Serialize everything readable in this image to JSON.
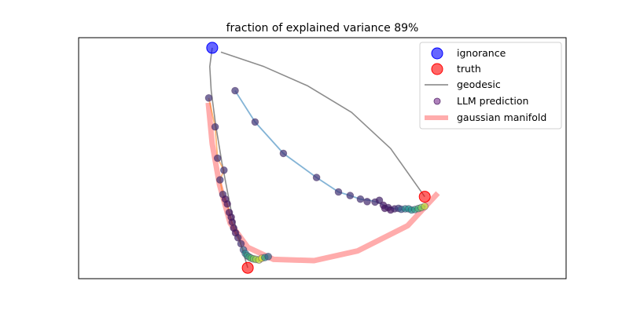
{
  "chart_data": {
    "type": "scatter",
    "title": "fraction of explained variance 89%",
    "xlabel": "",
    "ylabel": "",
    "axes_ticks": false,
    "grid": false,
    "legend_position": "upper right",
    "xlim": [
      0,
      1
    ],
    "ylim": [
      0,
      1
    ],
    "legend": [
      {
        "label": "ignorance",
        "marker": "circle",
        "color": "#0000ff"
      },
      {
        "label": "truth",
        "marker": "circle",
        "color": "#ff0000"
      },
      {
        "label": "geodesic",
        "marker": "line",
        "color": "#808080"
      },
      {
        "label": "LLM prediction",
        "marker": "circle",
        "color": "#8b4c9e"
      },
      {
        "label": "gaussian manifold",
        "marker": "thick-line",
        "color": "#ff9090"
      }
    ],
    "ignorance": [
      0.274,
      0.958
    ],
    "truth": [
      [
        0.347,
        0.045
      ],
      [
        0.71,
        0.34
      ]
    ],
    "geodesics": [
      [
        [
          0.274,
          0.958
        ],
        [
          0.269,
          0.88
        ],
        [
          0.272,
          0.78
        ],
        [
          0.281,
          0.64
        ],
        [
          0.294,
          0.48
        ],
        [
          0.313,
          0.28
        ],
        [
          0.347,
          0.045
        ]
      ],
      [
        [
          0.292,
          0.94
        ],
        [
          0.38,
          0.88
        ],
        [
          0.47,
          0.8
        ],
        [
          0.56,
          0.69
        ],
        [
          0.64,
          0.54
        ],
        [
          0.71,
          0.34
        ]
      ]
    ],
    "gaussian_manifold": [
      [
        0.266,
        0.73
      ],
      [
        0.274,
        0.56
      ],
      [
        0.289,
        0.39
      ],
      [
        0.311,
        0.23
      ],
      [
        0.347,
        0.13
      ],
      [
        0.4,
        0.08
      ],
      [
        0.483,
        0.075
      ],
      [
        0.572,
        0.115
      ],
      [
        0.675,
        0.22
      ],
      [
        0.737,
        0.355
      ]
    ],
    "trajectory_1": [
      [
        0.321,
        0.78
      ],
      [
        0.362,
        0.65
      ],
      [
        0.42,
        0.52
      ],
      [
        0.488,
        0.42
      ],
      [
        0.533,
        0.36
      ],
      [
        0.557,
        0.345
      ],
      [
        0.578,
        0.33
      ],
      [
        0.598,
        0.325
      ],
      [
        0.617,
        0.315
      ],
      [
        0.63,
        0.3
      ],
      [
        0.65,
        0.29
      ],
      [
        0.668,
        0.285
      ],
      [
        0.685,
        0.288
      ],
      [
        0.7,
        0.295
      ],
      [
        0.712,
        0.3
      ]
    ],
    "trajectory_2": [
      [
        0.267,
        0.75
      ],
      [
        0.28,
        0.63
      ],
      [
        0.285,
        0.5
      ],
      [
        0.298,
        0.45
      ],
      [
        0.29,
        0.41
      ],
      [
        0.296,
        0.35
      ],
      [
        0.305,
        0.31
      ],
      [
        0.31,
        0.27
      ],
      [
        0.315,
        0.23
      ],
      [
        0.322,
        0.19
      ],
      [
        0.33,
        0.155
      ],
      [
        0.338,
        0.12
      ],
      [
        0.346,
        0.095
      ],
      [
        0.353,
        0.085
      ],
      [
        0.36,
        0.08
      ],
      [
        0.368,
        0.078
      ],
      [
        0.376,
        0.08
      ],
      [
        0.385,
        0.09
      ]
    ],
    "llm_predictions": [
      {
        "x": 0.321,
        "y": 0.78,
        "c": 0.15
      },
      {
        "x": 0.362,
        "y": 0.65,
        "c": 0.15
      },
      {
        "x": 0.42,
        "y": 0.52,
        "c": 0.15
      },
      {
        "x": 0.488,
        "y": 0.42,
        "c": 0.15
      },
      {
        "x": 0.533,
        "y": 0.36,
        "c": 0.15
      },
      {
        "x": 0.557,
        "y": 0.345,
        "c": 0.15
      },
      {
        "x": 0.578,
        "y": 0.33,
        "c": 0.15
      },
      {
        "x": 0.592,
        "y": 0.32,
        "c": 0.12
      },
      {
        "x": 0.608,
        "y": 0.318,
        "c": 0.12
      },
      {
        "x": 0.617,
        "y": 0.325,
        "c": 0.1
      },
      {
        "x": 0.625,
        "y": 0.305,
        "c": 0.05
      },
      {
        "x": 0.628,
        "y": 0.292,
        "c": 0.05
      },
      {
        "x": 0.635,
        "y": 0.295,
        "c": 0.08
      },
      {
        "x": 0.64,
        "y": 0.285,
        "c": 0.05
      },
      {
        "x": 0.648,
        "y": 0.29,
        "c": 0.1
      },
      {
        "x": 0.656,
        "y": 0.292,
        "c": 0.2
      },
      {
        "x": 0.662,
        "y": 0.288,
        "c": 0.3
      },
      {
        "x": 0.67,
        "y": 0.29,
        "c": 0.45
      },
      {
        "x": 0.677,
        "y": 0.29,
        "c": 0.5
      },
      {
        "x": 0.683,
        "y": 0.285,
        "c": 0.5
      },
      {
        "x": 0.69,
        "y": 0.287,
        "c": 0.55
      },
      {
        "x": 0.697,
        "y": 0.291,
        "c": 0.65
      },
      {
        "x": 0.703,
        "y": 0.295,
        "c": 0.8
      },
      {
        "x": 0.71,
        "y": 0.3,
        "c": 0.9
      },
      {
        "x": 0.267,
        "y": 0.75,
        "c": 0.15
      },
      {
        "x": 0.28,
        "y": 0.63,
        "c": 0.15
      },
      {
        "x": 0.285,
        "y": 0.5,
        "c": 0.15
      },
      {
        "x": 0.298,
        "y": 0.45,
        "c": 0.15
      },
      {
        "x": 0.29,
        "y": 0.41,
        "c": 0.15
      },
      {
        "x": 0.296,
        "y": 0.35,
        "c": 0.15
      },
      {
        "x": 0.301,
        "y": 0.33,
        "c": 0.05
      },
      {
        "x": 0.305,
        "y": 0.31,
        "c": 0.05
      },
      {
        "x": 0.309,
        "y": 0.275,
        "c": 0.05
      },
      {
        "x": 0.313,
        "y": 0.255,
        "c": 0.05
      },
      {
        "x": 0.315,
        "y": 0.235,
        "c": 0.05
      },
      {
        "x": 0.318,
        "y": 0.21,
        "c": 0.05
      },
      {
        "x": 0.322,
        "y": 0.19,
        "c": 0.05
      },
      {
        "x": 0.327,
        "y": 0.17,
        "c": 0.1
      },
      {
        "x": 0.333,
        "y": 0.145,
        "c": 0.15
      },
      {
        "x": 0.338,
        "y": 0.12,
        "c": 0.3
      },
      {
        "x": 0.342,
        "y": 0.105,
        "c": 0.45
      },
      {
        "x": 0.346,
        "y": 0.095,
        "c": 0.55
      },
      {
        "x": 0.35,
        "y": 0.09,
        "c": 0.6
      },
      {
        "x": 0.354,
        "y": 0.085,
        "c": 0.7
      },
      {
        "x": 0.359,
        "y": 0.082,
        "c": 0.8
      },
      {
        "x": 0.364,
        "y": 0.08,
        "c": 0.85
      },
      {
        "x": 0.37,
        "y": 0.078,
        "c": 0.9
      },
      {
        "x": 0.376,
        "y": 0.085,
        "c": 0.95
      },
      {
        "x": 0.382,
        "y": 0.088,
        "c": 0.5
      },
      {
        "x": 0.389,
        "y": 0.092,
        "c": 0.35
      }
    ]
  }
}
